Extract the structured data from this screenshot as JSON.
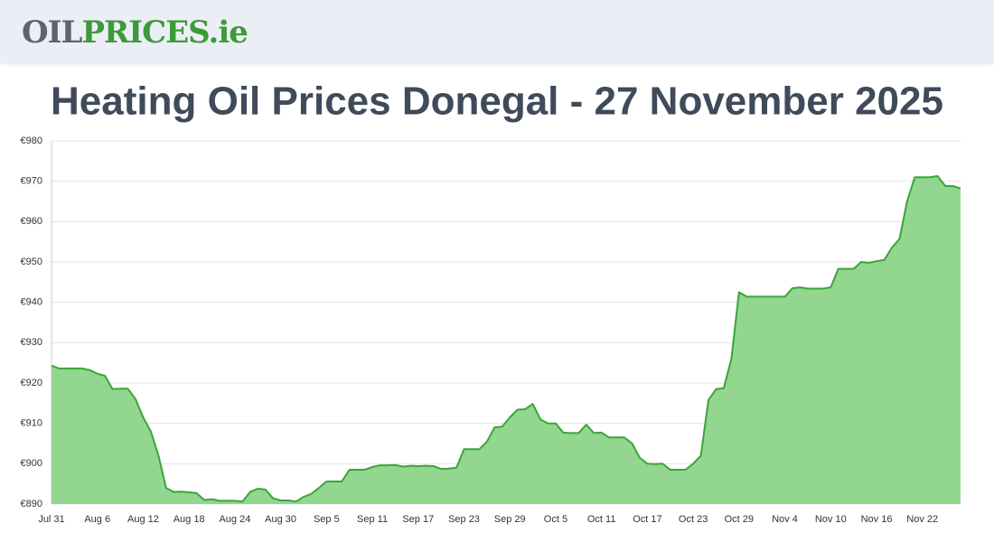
{
  "header": {
    "logo_part1": "OIL",
    "logo_part2": "PRICES.ie"
  },
  "chart_data": {
    "type": "area",
    "title": "Heating Oil Prices Donegal - 27 November 2025",
    "color": "#3aa63a",
    "fill": "#93d68f",
    "grid": true,
    "ylim": [
      890,
      980
    ],
    "yticks": [
      {
        "value": 890,
        "label": "€890"
      },
      {
        "value": 900,
        "label": "€900"
      },
      {
        "value": 910,
        "label": "€910"
      },
      {
        "value": 920,
        "label": "€920"
      },
      {
        "value": 930,
        "label": "€930"
      },
      {
        "value": 940,
        "label": "€940"
      },
      {
        "value": 950,
        "label": "€950"
      },
      {
        "value": 960,
        "label": "€960"
      },
      {
        "value": 970,
        "label": "€970"
      },
      {
        "value": 980,
        "label": "€980"
      }
    ],
    "categories": [
      "Jul 31",
      null,
      null,
      null,
      null,
      null,
      "Aug 6",
      null,
      null,
      null,
      null,
      null,
      "Aug 12",
      null,
      null,
      null,
      null,
      null,
      "Aug 18",
      null,
      null,
      null,
      null,
      null,
      "Aug 24",
      null,
      null,
      null,
      null,
      null,
      "Aug 30",
      null,
      null,
      null,
      null,
      null,
      "Sep 5",
      null,
      null,
      null,
      null,
      null,
      "Sep 11",
      null,
      null,
      null,
      null,
      null,
      "Sep 17",
      null,
      null,
      null,
      null,
      null,
      "Sep 23",
      null,
      null,
      null,
      null,
      null,
      "Sep 29",
      null,
      null,
      null,
      null,
      null,
      "Oct 5",
      null,
      null,
      null,
      null,
      null,
      "Oct 11",
      null,
      null,
      null,
      null,
      null,
      "Oct 17",
      null,
      null,
      null,
      null,
      null,
      "Oct 23",
      null,
      null,
      null,
      null,
      null,
      "Oct 29",
      null,
      null,
      null,
      null,
      null,
      "Nov 4",
      null,
      null,
      null,
      null,
      null,
      "Nov 10",
      null,
      null,
      null,
      null,
      null,
      "Nov 16",
      null,
      null,
      null,
      null,
      null,
      "Nov 22",
      null,
      null,
      null,
      null,
      null
    ],
    "values": [
      924.3,
      923.6,
      923.6,
      923.6,
      923.6,
      923.2,
      922.3,
      921.8,
      918.5,
      918.6,
      918.6,
      916,
      911.5,
      908,
      902,
      894,
      893,
      893.1,
      892.9,
      892.7,
      891,
      891.2,
      890.8,
      890.8,
      890.8,
      890.6,
      893,
      893.8,
      893.6,
      891.4,
      890.9,
      890.9,
      890.6,
      891.8,
      892.5,
      894,
      895.6,
      895.6,
      895.6,
      898.5,
      898.5,
      898.5,
      899.2,
      899.6,
      899.6,
      899.7,
      899.3,
      899.5,
      899.4,
      899.5,
      899.4,
      898.7,
      898.8,
      899,
      903.6,
      903.6,
      903.6,
      905.5,
      909,
      909.2,
      911.5,
      913.4,
      913.5,
      914.8,
      911,
      910,
      910,
      907.7,
      907.6,
      907.6,
      909.7,
      907.6,
      907.7,
      906.5,
      906.5,
      906.5,
      905,
      901.5,
      900,
      899.9,
      900,
      898.5,
      898.5,
      898.5,
      900,
      902,
      915.8,
      918.5,
      918.7,
      926,
      942.5,
      941.4,
      941.4,
      941.4,
      941.4,
      941.4,
      941.4,
      943.5,
      943.7,
      943.4,
      943.4,
      943.4,
      943.7,
      948.3,
      948.3,
      948.3,
      950,
      949.8,
      950.2,
      950.5,
      953.5,
      955.7,
      965,
      971,
      971,
      971,
      971.3,
      968.8,
      968.8,
      968.2
    ]
  }
}
